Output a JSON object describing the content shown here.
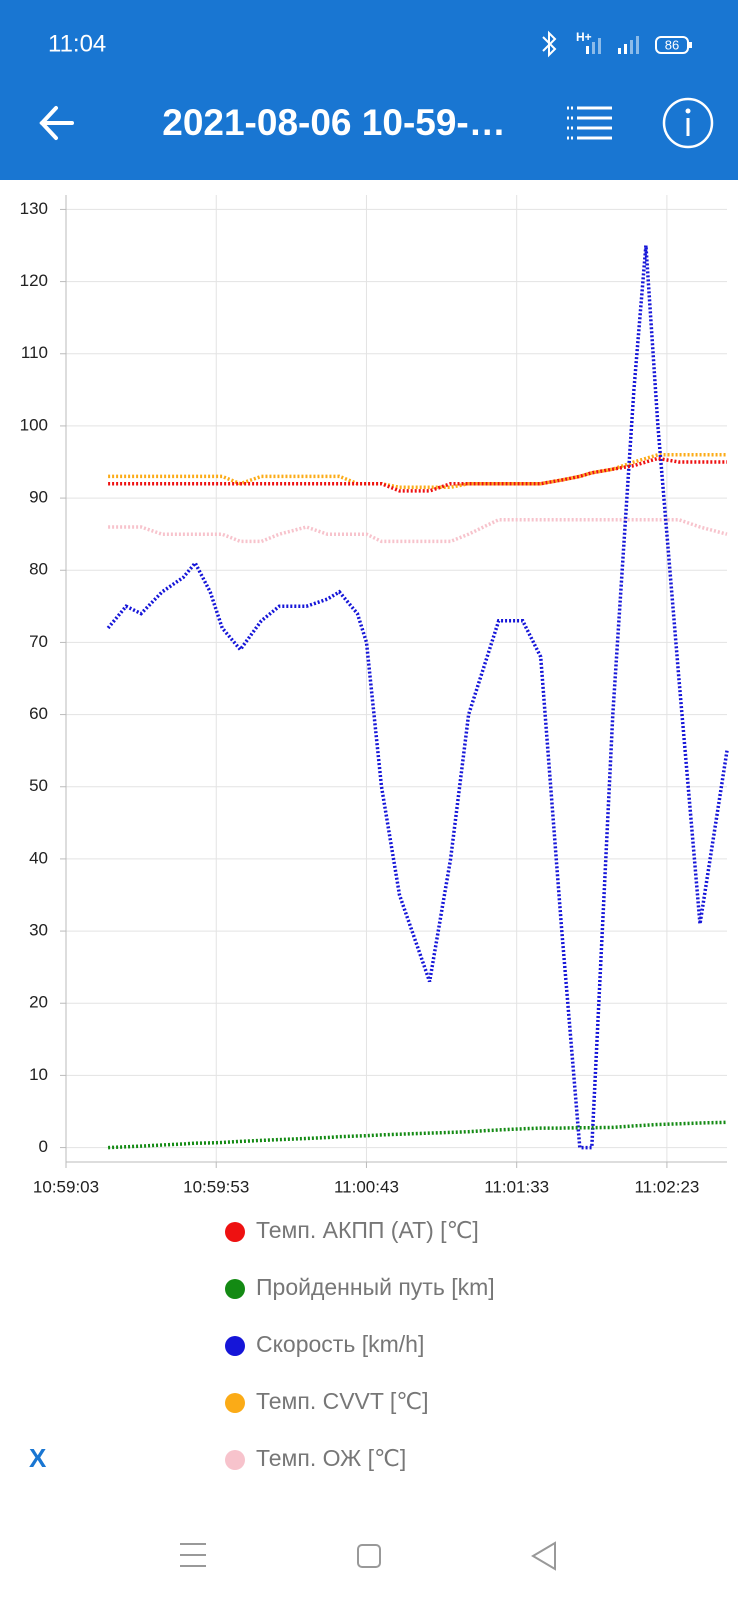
{
  "status_bar": {
    "time": "11:04",
    "network": "H+",
    "battery": "86"
  },
  "header": {
    "title": "2021-08-06 10-59-…"
  },
  "chart_data": {
    "type": "line",
    "x": [
      "10:59:17",
      "10:59:23",
      "10:59:28",
      "10:59:35",
      "10:59:42",
      "10:59:46",
      "10:59:51",
      "10:59:55",
      "11:00:01",
      "11:00:08",
      "11:00:14",
      "11:00:23",
      "11:00:30",
      "11:00:34",
      "11:00:40",
      "11:00:43",
      "11:00:48",
      "11:00:54",
      "11:01:04",
      "11:01:11",
      "11:01:17",
      "11:01:27",
      "11:01:35",
      "11:01:41",
      "11:01:48",
      "11:01:54",
      "11:01:58",
      "11:02:05",
      "11:02:12",
      "11:02:16",
      "11:02:20",
      "11:02:27",
      "11:02:34",
      "11:02:43"
    ],
    "xlim": [
      "10:59:03",
      "11:02:43"
    ],
    "xticks": [
      "10:59:03",
      "10:59:53",
      "11:00:43",
      "11:01:33",
      "11:02:23"
    ],
    "ylim": [
      -2,
      132
    ],
    "yticks": [
      0,
      10,
      20,
      30,
      40,
      50,
      60,
      70,
      80,
      90,
      100,
      110,
      120,
      130
    ],
    "grid": true,
    "line_style": "dotted",
    "series": [
      {
        "name": "Темп. АКПП (AT) [℃]",
        "color": "#ee1111",
        "values": [
          92,
          92,
          92,
          92,
          92,
          92,
          92,
          92,
          92,
          92,
          92,
          92,
          92,
          92,
          92,
          92,
          92,
          91,
          91,
          92,
          92,
          92,
          92,
          92,
          92.5,
          93,
          93.5,
          94,
          94.5,
          95,
          95.5,
          95,
          95,
          95
        ]
      },
      {
        "name": "Пройденный путь [km]",
        "color": "#138a13",
        "values": [
          0,
          0.1,
          0.2,
          0.35,
          0.5,
          0.6,
          0.65,
          0.7,
          0.85,
          1.0,
          1.1,
          1.25,
          1.4,
          1.5,
          1.6,
          1.65,
          1.75,
          1.85,
          2.0,
          2.1,
          2.2,
          2.45,
          2.6,
          2.7,
          2.7,
          2.75,
          2.75,
          2.8,
          3.0,
          3.1,
          3.2,
          3.3,
          3.4,
          3.5
        ]
      },
      {
        "name": "Скорость [km/h]",
        "color": "#1515d8",
        "values": [
          72,
          75,
          74,
          77,
          79,
          81,
          77,
          72,
          69,
          73,
          75,
          75,
          76,
          77,
          74,
          70,
          50,
          35,
          23,
          40,
          60,
          73,
          73,
          68,
          30,
          0,
          0,
          60,
          105,
          125,
          100,
          65,
          31,
          55
        ]
      },
      {
        "name": "Темп. CVVT [℃]",
        "color": "#fbab17",
        "values": [
          93,
          93,
          93,
          93,
          93,
          93,
          93,
          93,
          92,
          93,
          93,
          93,
          93,
          93,
          92,
          92,
          92,
          91.5,
          91.5,
          91.5,
          92,
          92,
          92,
          92,
          92.5,
          93,
          93.5,
          94,
          95,
          95.5,
          96,
          96,
          96,
          96
        ]
      },
      {
        "name": "Темп. ОЖ [℃]",
        "color": "#f7c3cc",
        "values": [
          86,
          86,
          86,
          85,
          85,
          85,
          85,
          85,
          84,
          84,
          85,
          86,
          85,
          85,
          85,
          85,
          84,
          84,
          84,
          84,
          85,
          87,
          87,
          87,
          87,
          87,
          87,
          87,
          87,
          87,
          87,
          87,
          86,
          85
        ]
      }
    ]
  },
  "close_label": "X"
}
